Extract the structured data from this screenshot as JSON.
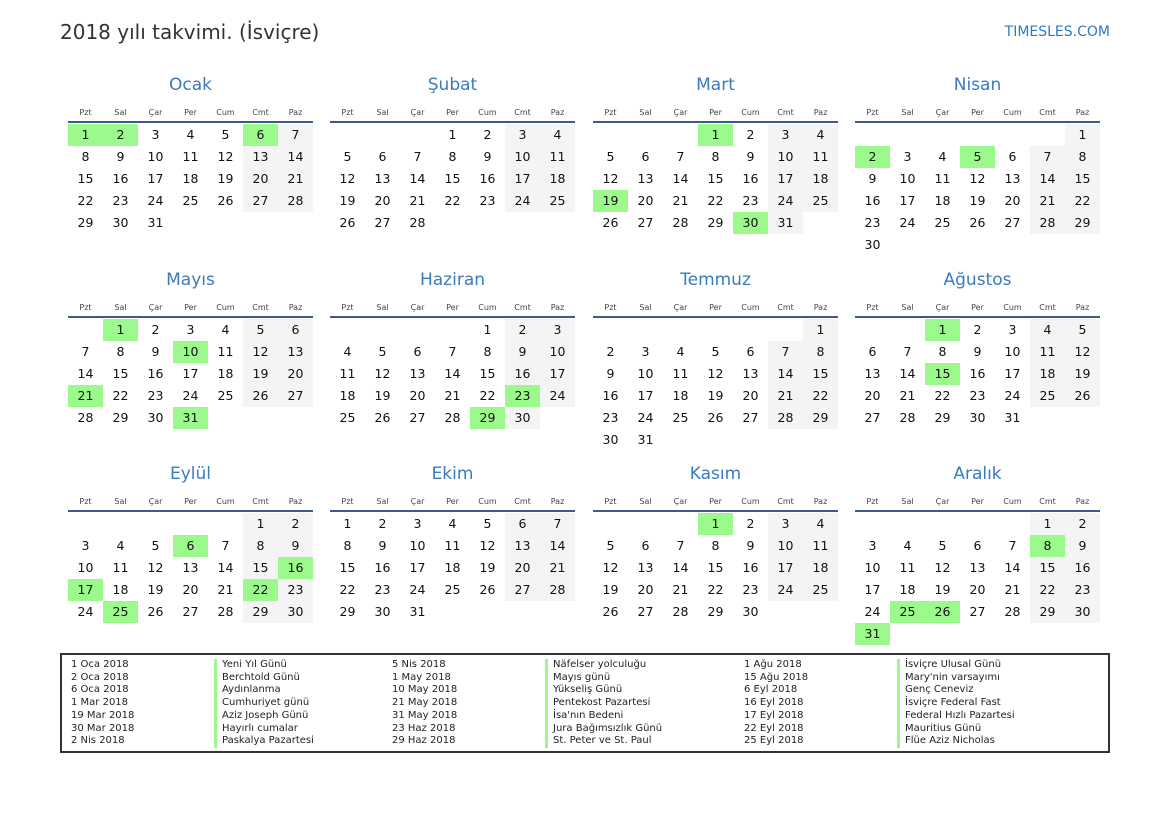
{
  "header": {
    "title": "2018 yılı takvimi. (İsviçre)",
    "brand": "TIMESLES.COM"
  },
  "weekdays": [
    "Pzt",
    "Sal",
    "Çar",
    "Per",
    "Cum",
    "Cmt",
    "Paz"
  ],
  "colors": {
    "accent": "#3a7bbf",
    "holiday": "#9cf98b",
    "weekend": "#f4f4f4"
  },
  "months": [
    {
      "name": "Ocak",
      "start_weekday": 0,
      "days": 31,
      "holidays": [
        1,
        2,
        6
      ]
    },
    {
      "name": "Şubat",
      "start_weekday": 3,
      "days": 28,
      "holidays": []
    },
    {
      "name": "Mart",
      "start_weekday": 3,
      "days": 31,
      "holidays": [
        1,
        19,
        30
      ]
    },
    {
      "name": "Nisan",
      "start_weekday": 6,
      "days": 30,
      "holidays": [
        2,
        5
      ]
    },
    {
      "name": "Mayıs",
      "start_weekday": 1,
      "days": 31,
      "holidays": [
        1,
        10,
        21,
        31
      ]
    },
    {
      "name": "Haziran",
      "start_weekday": 4,
      "days": 30,
      "holidays": [
        23,
        29
      ]
    },
    {
      "name": "Temmuz",
      "start_weekday": 6,
      "days": 31,
      "holidays": []
    },
    {
      "name": "Ağustos",
      "start_weekday": 2,
      "days": 31,
      "holidays": [
        1,
        15
      ]
    },
    {
      "name": "Eylül",
      "start_weekday": 5,
      "days": 30,
      "holidays": [
        6,
        16,
        17,
        22,
        25
      ]
    },
    {
      "name": "Ekim",
      "start_weekday": 0,
      "days": 31,
      "holidays": []
    },
    {
      "name": "Kasım",
      "start_weekday": 3,
      "days": 30,
      "holidays": [
        1
      ]
    },
    {
      "name": "Aralık",
      "start_weekday": 5,
      "days": 31,
      "holidays": [
        8,
        25,
        26,
        31
      ]
    }
  ],
  "holiday_list": [
    {
      "date": "1 Oca 2018",
      "name": "Yeni Yıl Günü"
    },
    {
      "date": "2 Oca 2018",
      "name": "Berchtold Günü"
    },
    {
      "date": "6 Oca 2018",
      "name": "Aydınlanma"
    },
    {
      "date": "1 Mar 2018",
      "name": "Cumhuriyet günü"
    },
    {
      "date": "19 Mar 2018",
      "name": "Aziz Joseph Günü"
    },
    {
      "date": "30 Mar 2018",
      "name": "Hayırlı cumalar"
    },
    {
      "date": "2 Nis 2018",
      "name": "Paskalya Pazartesi"
    },
    {
      "date": "5 Nis 2018",
      "name": "Näfelser yolculuğu"
    },
    {
      "date": "1 May 2018",
      "name": "Mayıs günü"
    },
    {
      "date": "10 May 2018",
      "name": "Yükseliş Günü"
    },
    {
      "date": "21 May 2018",
      "name": "Pentekost Pazartesi"
    },
    {
      "date": "31 May 2018",
      "name": "İsa'nın Bedeni"
    },
    {
      "date": "23 Haz 2018",
      "name": "Jura Bağımsızlık Günü"
    },
    {
      "date": "29 Haz 2018",
      "name": "St. Peter ve St. Paul"
    },
    {
      "date": "1 Ağu 2018",
      "name": "İsviçre Ulusal Günü"
    },
    {
      "date": "15 Ağu 2018",
      "name": "Mary'nin varsayımı"
    },
    {
      "date": "6 Eyl 2018",
      "name": "Genç Ceneviz"
    },
    {
      "date": "16 Eyl 2018",
      "name": "İsviçre Federal Fast"
    },
    {
      "date": "17 Eyl 2018",
      "name": "Federal Hızlı Pazartesi"
    },
    {
      "date": "22 Eyl 2018",
      "name": "Mauritius Günü"
    },
    {
      "date": "25 Eyl 2018",
      "name": "Flüe Aziz Nicholas"
    }
  ]
}
